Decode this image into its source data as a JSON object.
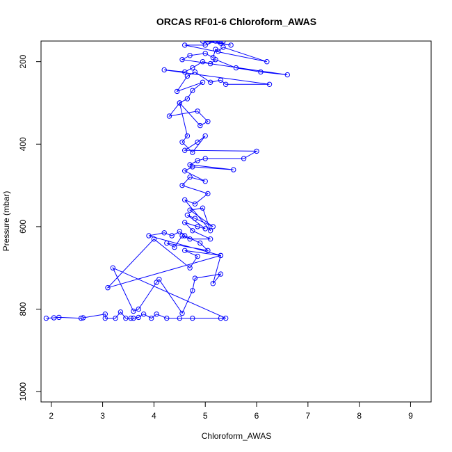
{
  "chart_data": {
    "type": "line",
    "title": "ORCAS RF01-6 Chloroform_AWAS",
    "xlabel": "Chloroform_AWAS",
    "ylabel": "Pressure (mbar)",
    "xlim": [
      1.8,
      9.4
    ],
    "ylim": [
      1025,
      150
    ],
    "y_reversed": true,
    "grid": false,
    "legend": "none",
    "color": "#0000ff",
    "x_ticks": [
      2,
      3,
      4,
      5,
      6,
      7,
      8,
      9
    ],
    "y_ticks": [
      200,
      400,
      600,
      800,
      1000
    ],
    "x": [
      1.9,
      2.05,
      2.15,
      2.58,
      2.62,
      3.05,
      3.05,
      3.25,
      3.35,
      3.45,
      3.55,
      3.6,
      3.7,
      3.8,
      3.95,
      4.05,
      4.25,
      4.5,
      4.75,
      5.3,
      5.4,
      3.2,
      3.6,
      3.7,
      4.05,
      4.1,
      4.55,
      4.75,
      4.8,
      5.3,
      5.15,
      5.3,
      3.1,
      4.0,
      4.7,
      4.85,
      4.6,
      5.3,
      3.9,
      4.2,
      4.35,
      4.5,
      4.6,
      4.9,
      5.05,
      4.25,
      4.4,
      4.55,
      4.7,
      5.1,
      4.75,
      4.6,
      4.85,
      5.0,
      4.65,
      4.8,
      5.15,
      4.7,
      4.95,
      5.1,
      4.6,
      4.8,
      5.05,
      4.55,
      4.7,
      5.0,
      4.6,
      4.75,
      5.55,
      4.7,
      4.85,
      5.0,
      5.75,
      6.0,
      4.6,
      4.85,
      5.0,
      4.75,
      4.55,
      4.65,
      4.5,
      4.9,
      5.05,
      4.85,
      4.3,
      4.5,
      4.65,
      4.75,
      4.95,
      4.45,
      4.65,
      4.8,
      5.1,
      5.3,
      5.4,
      6.25,
      4.2,
      4.6,
      4.75,
      4.95,
      5.1,
      5.2,
      5.6,
      6.08,
      6.6,
      4.55,
      4.7,
      5.0,
      5.15,
      5.2,
      5.25,
      5.35,
      6.2,
      4.6,
      5.0,
      5.2,
      5.3,
      5.5,
      4.95,
      5.05,
      5.25,
      5.35
    ],
    "y": [
      822,
      821,
      820,
      822,
      821,
      812,
      822,
      822,
      807,
      822,
      822,
      822,
      820,
      812,
      822,
      812,
      822,
      822,
      822,
      822,
      822,
      700,
      805,
      800,
      735,
      728,
      810,
      755,
      725,
      715,
      738,
      670,
      748,
      630,
      700,
      672,
      658,
      670,
      622,
      615,
      622,
      612,
      622,
      640,
      658,
      640,
      650,
      622,
      630,
      630,
      610,
      590,
      600,
      605,
      572,
      580,
      600,
      560,
      555,
      610,
      535,
      545,
      520,
      500,
      480,
      490,
      465,
      455,
      462,
      450,
      440,
      435,
      435,
      417,
      415,
      395,
      380,
      420,
      395,
      380,
      300,
      355,
      345,
      320,
      332,
      300,
      290,
      270,
      250,
      272,
      235,
      225,
      250,
      245,
      255,
      255,
      220,
      225,
      215,
      200,
      205,
      195,
      215,
      225,
      232,
      195,
      185,
      180,
      190,
      170,
      175,
      165,
      200,
      160,
      160,
      150,
      155,
      160,
      150,
      152,
      150,
      150
    ]
  }
}
